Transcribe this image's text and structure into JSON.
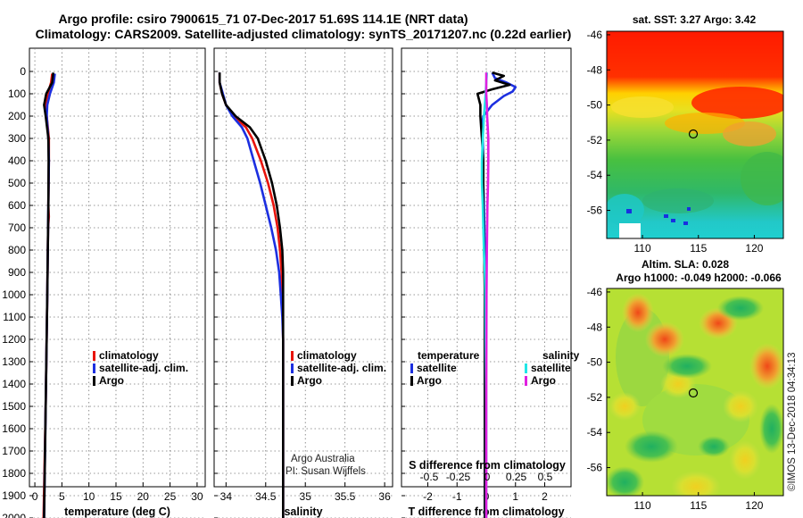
{
  "title": {
    "line1": "Argo profile: csiro 7900615_71 07-Dec-2017 51.69S 114.1E (NRT data)",
    "line2": "Climatology: CARS2009. Satellite-adjusted climatology: synTS_20171207.nc (0.22d earlier)"
  },
  "colors": {
    "climatology": "#e8140c",
    "satellite": "#1c2fe0",
    "argo": "#000000",
    "satellite_salinity": "#22e6e6",
    "argo_salinity": "#e020e0"
  },
  "chart_data": [
    {
      "type": "line",
      "id": "temperature",
      "xlabel": "temperature (deg C)",
      "ylabel": "",
      "xlim": [
        -1,
        31.5
      ],
      "ylim": [
        2050,
        0
      ],
      "xticks": [
        0,
        5,
        10,
        15,
        20,
        25,
        30
      ],
      "xtick_labels": [
        "0",
        "5",
        "10",
        "15",
        "20",
        "25",
        "30"
      ],
      "yticks": [
        0,
        100,
        200,
        300,
        400,
        500,
        600,
        700,
        800,
        900,
        1000,
        1100,
        1200,
        1300,
        1400,
        1500,
        1600,
        1700,
        1800,
        1900,
        2000
      ],
      "ytick_labels": [
        "0",
        "100",
        "200",
        "300",
        "400",
        "500",
        "600",
        "700",
        "800",
        "900",
        "1000",
        "1100",
        "1200",
        "1300",
        "1400",
        "1500",
        "1600",
        "1700",
        "1800",
        "1900",
        "2000"
      ],
      "grid": true,
      "legend": {
        "position": "lower-right",
        "entries": [
          "climatology",
          "satellite-adj. clim.",
          "Argo"
        ]
      },
      "series": [
        {
          "name": "climatology",
          "key": "climatology",
          "depth": [
            10,
            50,
            100,
            150,
            200,
            300,
            400,
            500,
            600,
            650,
            700,
            1000,
            1500,
            2000,
            2030
          ],
          "values": [
            3.2,
            3.0,
            2.4,
            1.9,
            2.2,
            2.6,
            2.6,
            2.55,
            2.5,
            2.6,
            2.45,
            2.3,
            2.0,
            1.6,
            1.5
          ]
        },
        {
          "name": "satellite-adj. clim.",
          "key": "satellite",
          "depth": [
            10,
            50,
            100,
            150,
            200,
            300,
            400,
            600,
            800,
            1000,
            1500,
            2000,
            2030
          ],
          "values": [
            3.7,
            3.5,
            2.8,
            2.3,
            2.2,
            2.5,
            2.6,
            2.5,
            2.4,
            2.3,
            2.0,
            1.7,
            1.65
          ]
        },
        {
          "name": "Argo",
          "key": "argo",
          "depth": [
            5,
            50,
            100,
            150,
            200,
            300,
            400,
            600,
            800,
            1000,
            1500,
            2000,
            2030
          ],
          "values": [
            3.4,
            3.2,
            2.1,
            1.7,
            2.0,
            2.5,
            2.55,
            2.5,
            2.4,
            2.3,
            2.0,
            1.7,
            1.65
          ]
        }
      ]
    },
    {
      "type": "line",
      "id": "salinity",
      "xlabel": "salinity",
      "xlim": [
        33.85,
        36.1
      ],
      "ylim": [
        2050,
        0
      ],
      "xticks": [
        34,
        34.5,
        35,
        35.5,
        36
      ],
      "xtick_labels": [
        "34",
        "34.5",
        "35",
        "35.5",
        "36"
      ],
      "grid": true,
      "legend": {
        "position": "lower-right",
        "entries": [
          "climatology",
          "satellite-adj. clim.",
          "Argo"
        ]
      },
      "annotation": {
        "line1": "Argo Australia",
        "line2": "PI: Susan Wijffels"
      },
      "series": [
        {
          "name": "climatology",
          "key": "climatology",
          "depth": [
            5,
            50,
            100,
            150,
            200,
            250,
            300,
            400,
            500,
            600,
            700,
            800,
            900,
            1000,
            1200,
            1500,
            2000,
            2030
          ],
          "values": [
            33.92,
            33.92,
            33.95,
            34.0,
            34.1,
            34.25,
            34.33,
            34.44,
            34.53,
            34.6,
            34.65,
            34.68,
            34.7,
            34.71,
            34.72,
            34.72,
            34.72,
            34.72
          ]
        },
        {
          "name": "satellite-adj. clim.",
          "key": "satellite",
          "depth": [
            5,
            50,
            100,
            150,
            200,
            250,
            300,
            400,
            500,
            600,
            700,
            800,
            900,
            1000,
            1100,
            1200,
            1500,
            2000,
            2030
          ],
          "values": [
            33.92,
            33.92,
            33.96,
            34.0,
            34.08,
            34.2,
            34.27,
            34.35,
            34.43,
            34.5,
            34.57,
            34.63,
            34.67,
            34.69,
            34.71,
            34.72,
            34.72,
            34.72,
            34.72
          ]
        },
        {
          "name": "Argo",
          "key": "argo",
          "depth": [
            5,
            50,
            100,
            150,
            200,
            250,
            300,
            400,
            500,
            600,
            700,
            800,
            900,
            1000,
            1200,
            1500,
            2000,
            2030
          ],
          "values": [
            33.92,
            33.92,
            33.95,
            34.0,
            34.12,
            34.3,
            34.4,
            34.5,
            34.58,
            34.64,
            34.68,
            34.71,
            34.72,
            34.72,
            34.72,
            34.72,
            34.72,
            34.72
          ]
        }
      ]
    },
    {
      "type": "line",
      "id": "difference",
      "xlabel": "T difference from climatology",
      "xlabel_top": "S difference from climatology",
      "xlim": [
        -2.9,
        2.9
      ],
      "ylim": [
        2050,
        0
      ],
      "xticks": [
        -2,
        -1,
        0,
        1,
        2
      ],
      "xtick_labels": [
        "-2",
        "-1",
        "0",
        "1",
        "2"
      ],
      "sticks": [
        -0.5,
        -0.25,
        0,
        0.25,
        0.5
      ],
      "stick_labels": [
        "-0.5",
        "-0.25",
        "0",
        "0.25",
        "0.5"
      ],
      "grid": true,
      "legend_temperature": {
        "title": "temperature",
        "entries": [
          "satellite",
          "Argo"
        ]
      },
      "legend_salinity": {
        "title": "salinity",
        "entries": [
          "satellite",
          "Argo"
        ]
      },
      "series": [
        {
          "name": "temperature satellite",
          "key": "satellite",
          "depth": [
            5,
            30,
            50,
            70,
            90,
            110,
            150,
            200,
            250,
            300,
            400,
            500,
            600,
            800,
            1000,
            1500,
            2000
          ],
          "values": [
            0.2,
            0.3,
            0.7,
            1.0,
            0.9,
            0.6,
            0.2,
            -0.1,
            -0.15,
            -0.12,
            -0.1,
            -0.1,
            -0.08,
            -0.05,
            -0.05,
            -0.05,
            -0.05
          ]
        },
        {
          "name": "temperature Argo",
          "key": "argo",
          "depth": [
            5,
            20,
            40,
            60,
            80,
            100,
            150,
            200,
            300,
            400,
            600,
            1000,
            1500,
            2000
          ],
          "values": [
            0.2,
            0.6,
            0.3,
            0.8,
            0.2,
            -0.3,
            -0.2,
            -0.2,
            -0.15,
            -0.1,
            -0.1,
            -0.05,
            -0.05,
            -0.05
          ]
        },
        {
          "name": "salinity satellite",
          "key": "satellite_salinity",
          "depth": [
            5,
            50,
            100,
            150,
            200,
            300,
            400,
            500,
            600,
            700,
            800,
            900,
            1000,
            1200,
            1500,
            2000
          ],
          "values": [
            0.02,
            0.0,
            -0.02,
            -0.05,
            -0.08,
            -0.12,
            -0.15,
            -0.15,
            -0.12,
            -0.1,
            -0.08,
            -0.05,
            -0.03,
            -0.02,
            0.0,
            0.0
          ]
        },
        {
          "name": "salinity Argo",
          "key": "argo_salinity",
          "depth": [
            5,
            50,
            100,
            150,
            200,
            300,
            400,
            500,
            600,
            700,
            800,
            1000,
            1500,
            2000
          ],
          "values": [
            0.0,
            0.0,
            0.0,
            0.02,
            0.03,
            0.07,
            0.07,
            0.06,
            0.04,
            0.03,
            0.02,
            0.01,
            0.0,
            0.0
          ]
        }
      ]
    }
  ],
  "maps": [
    {
      "id": "sst",
      "title": "sat. SST: 3.27 Argo: 3.42",
      "title2": "",
      "xticks": [
        110,
        115,
        120
      ],
      "xtick_labels": [
        "110",
        "115",
        "120"
      ],
      "yticks": [
        -46,
        -48,
        -50,
        -52,
        -54,
        -56
      ],
      "ytick_labels": [
        "-46",
        "-48",
        "-50",
        "-52",
        "-54",
        "-56"
      ],
      "lon_range": [
        106.8,
        122.6
      ],
      "lat_range": [
        -45.8,
        -57.6
      ],
      "argo_position": {
        "lon": 114.1,
        "lat": -51.69
      }
    },
    {
      "id": "sla",
      "title": "Altim. SLA: 0.028",
      "title2": "Argo h1000: -0.049 h2000: -0.066",
      "xticks": [
        110,
        115,
        120
      ],
      "xtick_labels": [
        "110",
        "115",
        "120"
      ],
      "yticks": [
        -46,
        -48,
        -50,
        -52,
        -54,
        -56
      ],
      "ytick_labels": [
        "-46",
        "-48",
        "-50",
        "-52",
        "-54",
        "-56"
      ],
      "lon_range": [
        106.8,
        122.6
      ],
      "lat_range": [
        -45.8,
        -57.6
      ],
      "argo_position": {
        "lon": 114.1,
        "lat": -51.69
      }
    }
  ],
  "watermark": "©IMOS 13-Dec-2018 04:34:13"
}
